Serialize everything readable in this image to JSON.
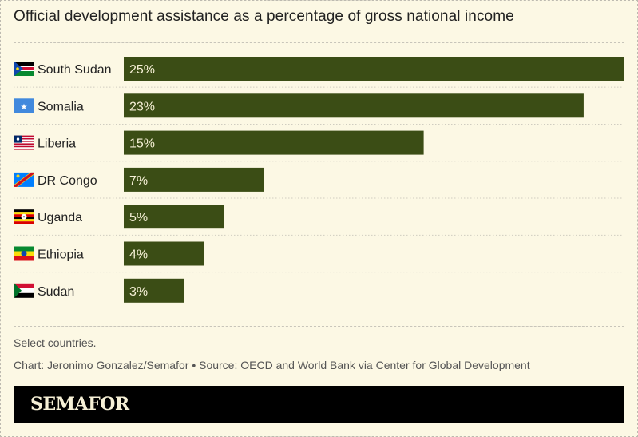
{
  "chart_data": {
    "type": "bar",
    "orientation": "horizontal",
    "title": "Official development assistance as a percentage of gross national income",
    "categories": [
      "South Sudan",
      "Somalia",
      "Liberia",
      "DR Congo",
      "Uganda",
      "Ethiopia",
      "Sudan"
    ],
    "values": [
      25,
      23,
      15,
      7,
      5,
      4,
      3
    ],
    "data_labels": [
      "25%",
      "23%",
      "15%",
      "7%",
      "5%",
      "4%",
      "3%"
    ],
    "flag_icons": [
      "south-sudan-flag-icon",
      "somalia-flag-icon",
      "liberia-flag-icon",
      "dr-congo-flag-icon",
      "uganda-flag-icon",
      "ethiopia-flag-icon",
      "sudan-flag-icon"
    ],
    "xlim": [
      0,
      25
    ],
    "grid": false,
    "bar_color": "#3b4d15",
    "label_color": "#f6f0d6"
  },
  "notes": {
    "note": "Select countries.",
    "credit": "Chart: Jeronimo Gonzalez/Semafor • Source: OECD and World Bank via Center for Global Development"
  },
  "footer": {
    "logo": "SEMAFOR"
  },
  "colors": {
    "background": "#fcf8e4"
  }
}
